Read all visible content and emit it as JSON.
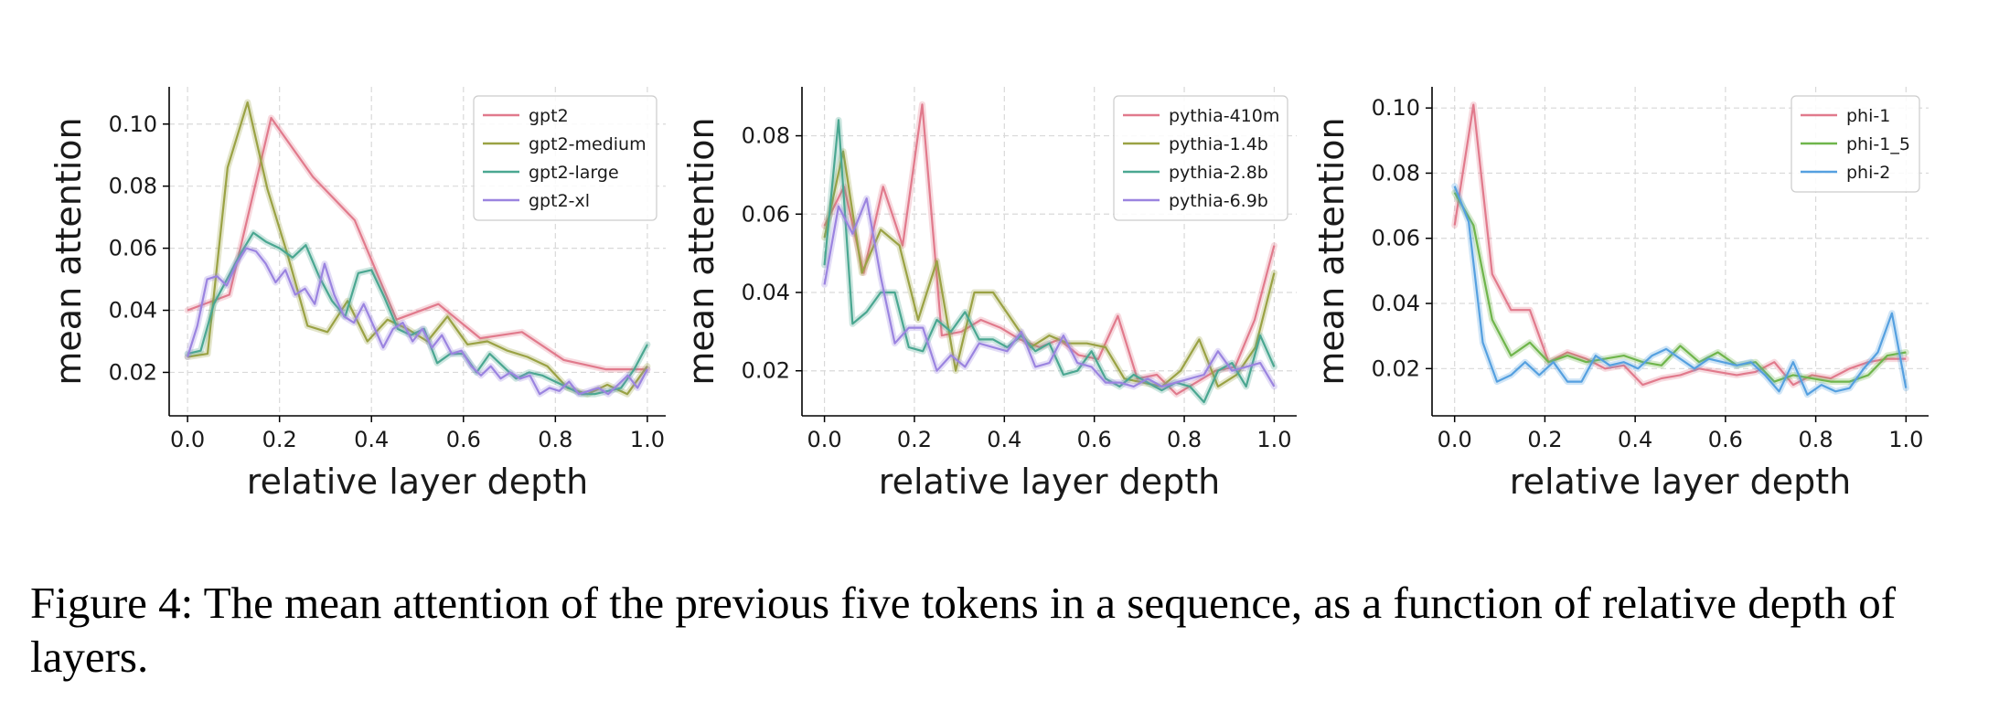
{
  "caption": "Figure 4: The mean attention of the previous five tokens in a sequence, as a function of relative depth of layers.",
  "chart_data": [
    {
      "type": "line",
      "xlabel": "relative layer depth",
      "ylabel": "mean attention",
      "xlim": [
        -0.04,
        1.04
      ],
      "ylim": [
        0.006,
        0.112
      ],
      "xticks": [
        0.0,
        0.2,
        0.4,
        0.6,
        0.8,
        1.0
      ],
      "yticks": [
        0.02,
        0.04,
        0.06,
        0.08,
        0.1
      ],
      "grid": true,
      "legend": "top-right",
      "series": [
        {
          "name": "gpt2",
          "color": "#e17a8c",
          "x": [
            0,
            0.0909,
            0.1818,
            0.2727,
            0.3636,
            0.4545,
            0.5455,
            0.6364,
            0.7273,
            0.8182,
            0.9091,
            1.0
          ],
          "y": [
            0.04,
            0.045,
            0.102,
            0.083,
            0.069,
            0.037,
            0.042,
            0.031,
            0.033,
            0.024,
            0.021,
            0.021
          ]
        },
        {
          "name": "gpt2-medium",
          "color": "#9aa244",
          "x": [
            0,
            0.0435,
            0.087,
            0.1304,
            0.1739,
            0.2174,
            0.2609,
            0.3043,
            0.3478,
            0.3913,
            0.4348,
            0.4783,
            0.5217,
            0.5652,
            0.6087,
            0.6522,
            0.6957,
            0.7391,
            0.7826,
            0.8261,
            0.8696,
            0.913,
            0.9565,
            1.0
          ],
          "y": [
            0.025,
            0.026,
            0.086,
            0.107,
            0.079,
            0.058,
            0.035,
            0.033,
            0.043,
            0.03,
            0.037,
            0.034,
            0.03,
            0.038,
            0.029,
            0.03,
            0.027,
            0.025,
            0.022,
            0.015,
            0.013,
            0.016,
            0.013,
            0.022
          ]
        },
        {
          "name": "gpt2-large",
          "color": "#4aa791",
          "x": [
            0,
            0.0286,
            0.0571,
            0.0857,
            0.1143,
            0.1429,
            0.1714,
            0.2,
            0.2286,
            0.2571,
            0.2857,
            0.3143,
            0.3429,
            0.3714,
            0.4,
            0.4286,
            0.4571,
            0.4857,
            0.5143,
            0.5429,
            0.5714,
            0.6,
            0.6286,
            0.6571,
            0.6857,
            0.7143,
            0.7429,
            0.7714,
            0.8,
            0.8286,
            0.8571,
            0.8857,
            0.9143,
            0.9429,
            0.9714,
            1.0
          ],
          "y": [
            0.026,
            0.027,
            0.042,
            0.05,
            0.058,
            0.065,
            0.062,
            0.06,
            0.057,
            0.061,
            0.051,
            0.043,
            0.038,
            0.052,
            0.053,
            0.044,
            0.034,
            0.032,
            0.034,
            0.023,
            0.026,
            0.026,
            0.02,
            0.026,
            0.022,
            0.018,
            0.02,
            0.019,
            0.017,
            0.015,
            0.013,
            0.013,
            0.014,
            0.015,
            0.021,
            0.029
          ]
        },
        {
          "name": "gpt2-xl",
          "color": "#9b84e0",
          "x": [
            0,
            0.0213,
            0.0426,
            0.0638,
            0.0851,
            0.1064,
            0.1277,
            0.1489,
            0.1702,
            0.1915,
            0.2128,
            0.234,
            0.2553,
            0.2766,
            0.2979,
            0.3191,
            0.3404,
            0.3617,
            0.383,
            0.4043,
            0.4255,
            0.4468,
            0.4681,
            0.4894,
            0.5106,
            0.5319,
            0.5532,
            0.5745,
            0.5957,
            0.617,
            0.6383,
            0.6596,
            0.6809,
            0.7021,
            0.7234,
            0.7447,
            0.766,
            0.7872,
            0.8085,
            0.8298,
            0.8511,
            0.8723,
            0.8936,
            0.9149,
            0.9362,
            0.9574,
            0.9787,
            1.0
          ],
          "y": [
            0.025,
            0.035,
            0.05,
            0.051,
            0.048,
            0.055,
            0.06,
            0.059,
            0.055,
            0.049,
            0.053,
            0.045,
            0.047,
            0.042,
            0.055,
            0.045,
            0.038,
            0.036,
            0.042,
            0.035,
            0.028,
            0.034,
            0.036,
            0.03,
            0.034,
            0.028,
            0.032,
            0.026,
            0.027,
            0.022,
            0.019,
            0.022,
            0.018,
            0.02,
            0.018,
            0.019,
            0.013,
            0.015,
            0.014,
            0.017,
            0.013,
            0.014,
            0.015,
            0.013,
            0.016,
            0.019,
            0.015,
            0.021
          ]
        }
      ]
    },
    {
      "type": "line",
      "xlabel": "relative layer depth",
      "ylabel": "mean attention",
      "xlim": [
        -0.05,
        1.05
      ],
      "ylim": [
        0.0085,
        0.0925
      ],
      "xticks": [
        0.0,
        0.2,
        0.4,
        0.6,
        0.8,
        1.0
      ],
      "yticks": [
        0.02,
        0.04,
        0.06,
        0.08
      ],
      "grid": true,
      "legend": "top-right",
      "series": [
        {
          "name": "pythia-410m",
          "color": "#e17a8c",
          "x": [
            0,
            0.0435,
            0.087,
            0.1304,
            0.1739,
            0.2174,
            0.2609,
            0.3043,
            0.3478,
            0.3913,
            0.4348,
            0.4783,
            0.5217,
            0.5652,
            0.6087,
            0.6522,
            0.6957,
            0.7391,
            0.7826,
            0.8261,
            0.8696,
            0.913,
            0.9565,
            1.0
          ],
          "y": [
            0.057,
            0.067,
            0.045,
            0.067,
            0.052,
            0.088,
            0.029,
            0.03,
            0.033,
            0.031,
            0.028,
            0.026,
            0.028,
            0.024,
            0.023,
            0.034,
            0.018,
            0.019,
            0.014,
            0.017,
            0.02,
            0.021,
            0.033,
            0.052
          ]
        },
        {
          "name": "pythia-1.4b",
          "color": "#9aa244",
          "x": [
            0,
            0.0417,
            0.0833,
            0.125,
            0.1667,
            0.2083,
            0.25,
            0.2917,
            0.3333,
            0.375,
            0.4167,
            0.4583,
            0.5,
            0.5417,
            0.5833,
            0.625,
            0.6667,
            0.7083,
            0.75,
            0.7917,
            0.8333,
            0.875,
            0.9167,
            0.9583,
            1.0
          ],
          "y": [
            0.054,
            0.076,
            0.045,
            0.056,
            0.052,
            0.033,
            0.048,
            0.02,
            0.04,
            0.04,
            0.033,
            0.026,
            0.029,
            0.027,
            0.027,
            0.026,
            0.018,
            0.017,
            0.016,
            0.02,
            0.028,
            0.016,
            0.019,
            0.026,
            0.045
          ]
        },
        {
          "name": "pythia-2.8b",
          "color": "#4aa791",
          "x": [
            0,
            0.0313,
            0.0625,
            0.0938,
            0.125,
            0.1563,
            0.1875,
            0.2188,
            0.25,
            0.2813,
            0.3125,
            0.3438,
            0.375,
            0.4063,
            0.4375,
            0.4688,
            0.5,
            0.5313,
            0.5625,
            0.5938,
            0.625,
            0.6563,
            0.6875,
            0.7188,
            0.75,
            0.7813,
            0.8125,
            0.8438,
            0.875,
            0.9063,
            0.9375,
            0.9688,
            1.0
          ],
          "y": [
            0.047,
            0.084,
            0.032,
            0.035,
            0.04,
            0.04,
            0.026,
            0.025,
            0.033,
            0.03,
            0.035,
            0.028,
            0.028,
            0.026,
            0.029,
            0.025,
            0.027,
            0.019,
            0.02,
            0.025,
            0.018,
            0.016,
            0.019,
            0.017,
            0.015,
            0.017,
            0.016,
            0.012,
            0.02,
            0.022,
            0.016,
            0.029,
            0.021
          ]
        },
        {
          "name": "pythia-6.9b",
          "color": "#9b84e0",
          "x": [
            0,
            0.0313,
            0.0625,
            0.0938,
            0.125,
            0.1563,
            0.1875,
            0.2188,
            0.25,
            0.2813,
            0.3125,
            0.3438,
            0.375,
            0.4063,
            0.4375,
            0.4688,
            0.5,
            0.5313,
            0.5625,
            0.5938,
            0.625,
            0.6563,
            0.6875,
            0.7188,
            0.75,
            0.7813,
            0.8125,
            0.8438,
            0.875,
            0.9063,
            0.9375,
            0.9688,
            1.0
          ],
          "y": [
            0.042,
            0.062,
            0.055,
            0.064,
            0.044,
            0.027,
            0.031,
            0.031,
            0.02,
            0.024,
            0.021,
            0.027,
            0.026,
            0.025,
            0.03,
            0.021,
            0.022,
            0.029,
            0.022,
            0.021,
            0.017,
            0.017,
            0.016,
            0.018,
            0.016,
            0.017,
            0.018,
            0.019,
            0.025,
            0.02,
            0.021,
            0.022,
            0.016
          ]
        }
      ]
    },
    {
      "type": "line",
      "xlabel": "relative layer depth",
      "ylabel": "mean attention",
      "xlim": [
        -0.05,
        1.05
      ],
      "ylim": [
        0.0055,
        0.1065
      ],
      "xticks": [
        0.0,
        0.2,
        0.4,
        0.6,
        0.8,
        1.0
      ],
      "yticks": [
        0.02,
        0.04,
        0.06,
        0.08,
        0.1
      ],
      "grid": true,
      "legend": "top-right",
      "series": [
        {
          "name": "phi-1",
          "color": "#e17a8c",
          "x": [
            0,
            0.0417,
            0.0833,
            0.125,
            0.1667,
            0.2083,
            0.25,
            0.2917,
            0.3333,
            0.375,
            0.4167,
            0.4583,
            0.5,
            0.5417,
            0.5833,
            0.625,
            0.6667,
            0.7083,
            0.75,
            0.7917,
            0.8333,
            0.875,
            0.9167,
            0.9583,
            1.0
          ],
          "y": [
            0.064,
            0.101,
            0.049,
            0.038,
            0.038,
            0.022,
            0.025,
            0.023,
            0.02,
            0.021,
            0.015,
            0.017,
            0.018,
            0.02,
            0.019,
            0.018,
            0.019,
            0.022,
            0.015,
            0.018,
            0.017,
            0.02,
            0.022,
            0.023,
            0.023
          ]
        },
        {
          "name": "phi-1_5",
          "color": "#6fb54b",
          "x": [
            0,
            0.0417,
            0.0833,
            0.125,
            0.1667,
            0.2083,
            0.25,
            0.2917,
            0.3333,
            0.375,
            0.4167,
            0.4583,
            0.5,
            0.5417,
            0.5833,
            0.625,
            0.6667,
            0.7083,
            0.75,
            0.7917,
            0.8333,
            0.875,
            0.9167,
            0.9583,
            1.0
          ],
          "y": [
            0.074,
            0.064,
            0.035,
            0.024,
            0.028,
            0.022,
            0.024,
            0.022,
            0.023,
            0.024,
            0.022,
            0.021,
            0.027,
            0.022,
            0.025,
            0.021,
            0.022,
            0.016,
            0.018,
            0.017,
            0.016,
            0.016,
            0.018,
            0.024,
            0.025
          ]
        },
        {
          "name": "phi-2",
          "color": "#55a0e0",
          "x": [
            0,
            0.0313,
            0.0625,
            0.0938,
            0.125,
            0.1563,
            0.1875,
            0.2188,
            0.25,
            0.2813,
            0.3125,
            0.3438,
            0.375,
            0.4063,
            0.4375,
            0.4688,
            0.5,
            0.5313,
            0.5625,
            0.5938,
            0.625,
            0.6563,
            0.6875,
            0.7188,
            0.75,
            0.7813,
            0.8125,
            0.8438,
            0.875,
            0.9063,
            0.9375,
            0.9688,
            1.0
          ],
          "y": [
            0.076,
            0.065,
            0.028,
            0.016,
            0.018,
            0.022,
            0.018,
            0.022,
            0.016,
            0.016,
            0.024,
            0.021,
            0.022,
            0.02,
            0.024,
            0.026,
            0.023,
            0.02,
            0.023,
            0.022,
            0.021,
            0.022,
            0.018,
            0.013,
            0.022,
            0.012,
            0.015,
            0.013,
            0.014,
            0.02,
            0.025,
            0.037,
            0.014
          ]
        }
      ]
    }
  ]
}
